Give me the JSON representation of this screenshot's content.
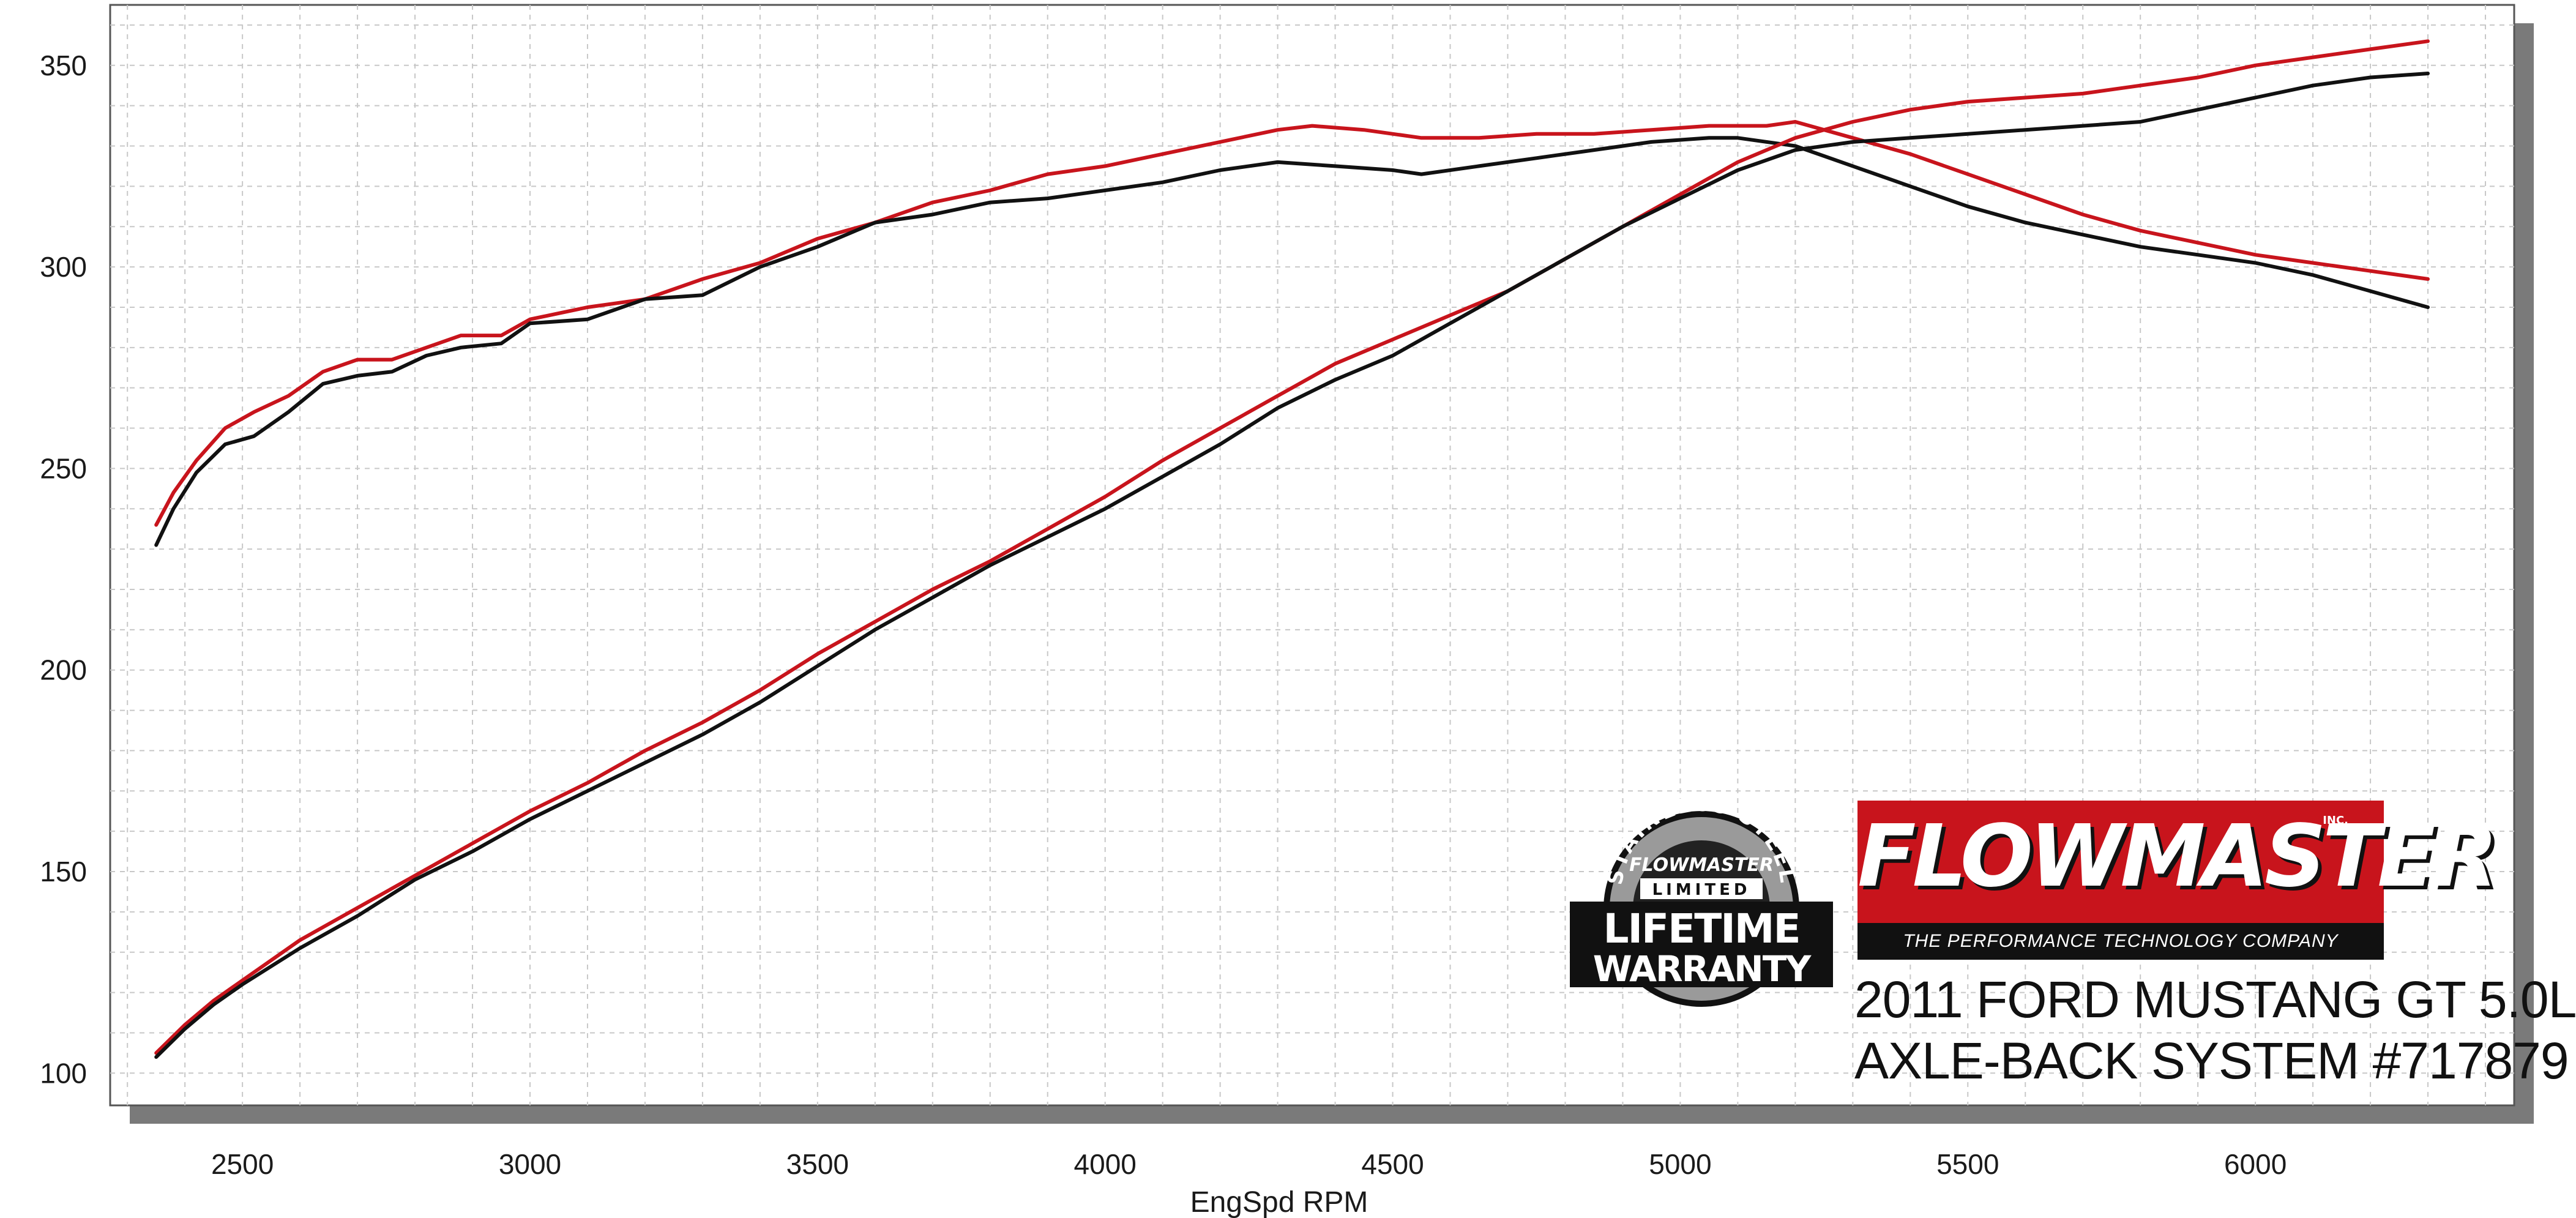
{
  "chart_data": {
    "type": "line",
    "title": "",
    "xlabel": "EngSpd  RPM",
    "ylabel": "",
    "xlim": [
      2270,
      6450
    ],
    "ylim": [
      92,
      365
    ],
    "x_ticks": [
      2500,
      3000,
      3500,
      4000,
      4500,
      5000,
      5500,
      6000
    ],
    "y_ticks": [
      100,
      150,
      200,
      250,
      300,
      350
    ],
    "grid": true,
    "colors": {
      "red": "#c8141c",
      "black": "#111111"
    },
    "series": [
      {
        "color": "#c8141c",
        "x": [
          2350,
          2380,
          2420,
          2470,
          2520,
          2580,
          2640,
          2700,
          2760,
          2820,
          2880,
          2950,
          3000,
          3100,
          3200,
          3300,
          3400,
          3500,
          3600,
          3700,
          3800,
          3900,
          4000,
          4100,
          4200,
          4300,
          4360,
          4450,
          4550,
          4650,
          4750,
          4850,
          4950,
          5050,
          5150,
          5200,
          5300,
          5400,
          5500,
          5600,
          5700,
          5800,
          5900,
          6000,
          6100,
          6200,
          6300
        ],
        "y": [
          236,
          244,
          252,
          260,
          264,
          268,
          274,
          277,
          277,
          280,
          283,
          283,
          287,
          290,
          292,
          297,
          301,
          307,
          311,
          316,
          319,
          323,
          325,
          328,
          331,
          334,
          335,
          334,
          332,
          332,
          333,
          333,
          334,
          335,
          335,
          336,
          332,
          328,
          323,
          318,
          313,
          309,
          306,
          303,
          301,
          299,
          297
        ]
      },
      {
        "color": "#111111",
        "x": [
          2350,
          2380,
          2420,
          2470,
          2520,
          2580,
          2640,
          2700,
          2760,
          2820,
          2880,
          2950,
          3000,
          3100,
          3200,
          3300,
          3400,
          3500,
          3600,
          3700,
          3800,
          3900,
          4000,
          4100,
          4200,
          4300,
          4400,
          4500,
          4550,
          4650,
          4750,
          4850,
          4950,
          5050,
          5100,
          5200,
          5300,
          5400,
          5500,
          5600,
          5700,
          5800,
          5900,
          6000,
          6100,
          6200,
          6300
        ],
        "y": [
          231,
          240,
          249,
          256,
          258,
          264,
          271,
          273,
          274,
          278,
          280,
          281,
          286,
          287,
          292,
          293,
          300,
          305,
          311,
          313,
          316,
          317,
          319,
          321,
          324,
          326,
          325,
          324,
          323,
          325,
          327,
          329,
          331,
          332,
          332,
          330,
          325,
          320,
          315,
          311,
          308,
          305,
          303,
          301,
          298,
          294,
          290
        ]
      },
      {
        "color": "#c8141c",
        "x": [
          2350,
          2400,
          2450,
          2500,
          2600,
          2700,
          2800,
          2900,
          3000,
          3100,
          3200,
          3300,
          3400,
          3500,
          3600,
          3700,
          3800,
          3900,
          4000,
          4100,
          4200,
          4300,
          4400,
          4500,
          4600,
          4700,
          4800,
          4900,
          5000,
          5100,
          5200,
          5300,
          5400,
          5500,
          5600,
          5700,
          5800,
          5900,
          6000,
          6100,
          6200,
          6300
        ],
        "y": [
          105,
          112,
          118,
          123,
          133,
          141,
          149,
          157,
          165,
          172,
          180,
          187,
          195,
          204,
          212,
          220,
          227,
          235,
          243,
          252,
          260,
          268,
          276,
          282,
          288,
          294,
          302,
          310,
          318,
          326,
          332,
          336,
          339,
          341,
          342,
          343,
          345,
          347,
          350,
          352,
          354,
          356
        ]
      },
      {
        "color": "#111111",
        "x": [
          2350,
          2400,
          2450,
          2500,
          2600,
          2700,
          2800,
          2900,
          3000,
          3100,
          3200,
          3300,
          3400,
          3500,
          3600,
          3700,
          3800,
          3900,
          4000,
          4100,
          4200,
          4300,
          4400,
          4500,
          4600,
          4700,
          4800,
          4900,
          5000,
          5100,
          5200,
          5300,
          5400,
          5500,
          5600,
          5700,
          5800,
          5900,
          6000,
          6100,
          6200,
          6300
        ],
        "y": [
          104,
          111,
          117,
          122,
          131,
          139,
          148,
          155,
          163,
          170,
          177,
          184,
          192,
          201,
          210,
          218,
          226,
          233,
          240,
          248,
          256,
          265,
          272,
          278,
          286,
          294,
          302,
          310,
          317,
          324,
          329,
          331,
          332,
          333,
          334,
          335,
          336,
          339,
          342,
          345,
          347,
          348
        ]
      }
    ]
  },
  "logos": {
    "warranty": {
      "line1": "STAINLESS STEEL",
      "line2": "FLOWMASTER",
      "line3": "LIMITED",
      "line4": "LIFETIME",
      "line5": "WARRANTY"
    },
    "brand": {
      "name": "FLOWMASTER",
      "inc": "INC.",
      "tagline": "THE PERFORMANCE TECHNOLOGY COMPANY"
    }
  },
  "caption": {
    "line1": "2011 FORD MUSTANG GT 5.0L",
    "line2": "AXLE-BACK SYSTEM #717879"
  }
}
